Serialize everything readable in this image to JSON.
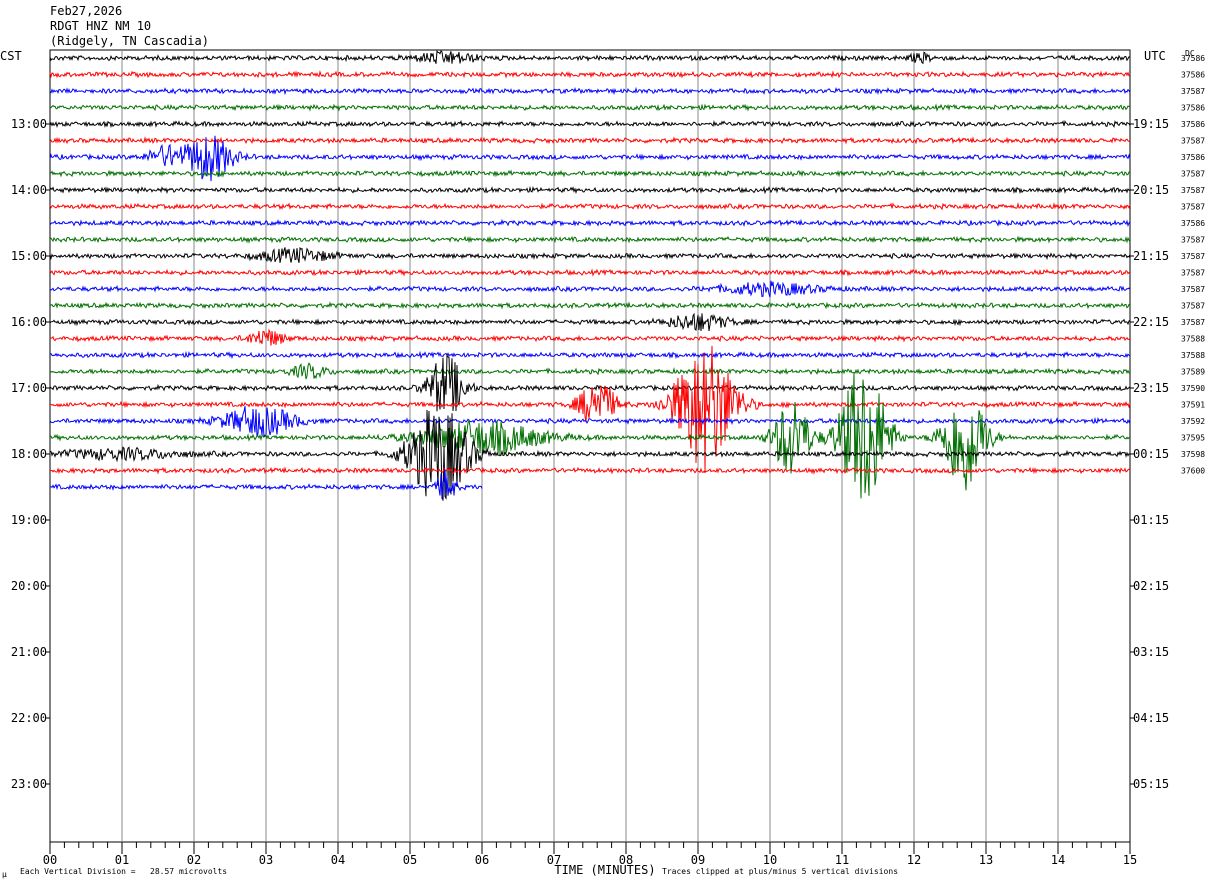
{
  "header": {
    "date": "Feb27,2026",
    "station": "RDGT HNZ NM 10",
    "location": "(Ridgely, TN Cascadia)"
  },
  "left_tz": "CST",
  "right_tz": "UTC",
  "dc_header": "DC",
  "footer": {
    "scale": "Each Vertical Division =   28.57 microvolts",
    "clip": "Traces clipped at plus/minus 5 vertical divisions",
    "logo": "µ"
  },
  "colors": [
    "#000000",
    "#ff0000",
    "#0000ff",
    "#007000"
  ],
  "chart_data": {
    "type": "line",
    "xlabel": "TIME (MINUTES)",
    "x_ticks": [
      "00",
      "01",
      "02",
      "03",
      "04",
      "05",
      "06",
      "07",
      "08",
      "09",
      "10",
      "11",
      "12",
      "13",
      "14",
      "15"
    ],
    "xlim": [
      0,
      15
    ],
    "left_hour_labels": [
      "13:00",
      "14:00",
      "15:00",
      "16:00",
      "17:00",
      "18:00",
      "19:00",
      "20:00",
      "21:00",
      "22:00",
      "23:00"
    ],
    "right_hour_labels": [
      "19:15",
      "20:15",
      "21:15",
      "22:15",
      "23:15",
      "00:15",
      "01:15",
      "02:15",
      "03:15",
      "04:15",
      "05:15"
    ],
    "dc_offsets": [
      "37586",
      "37586",
      "37587",
      "37586",
      "37586",
      "37587",
      "37586",
      "37587",
      "37587",
      "37587",
      "37586",
      "37587",
      "37587",
      "37587",
      "37587",
      "37587",
      "37587",
      "37588",
      "37588",
      "37589",
      "37590",
      "37591",
      "37592",
      "37595",
      "37598",
      "37600"
    ],
    "trace_count": 27,
    "last_trace_end_minute": 6.0,
    "events": [
      {
        "trace": 0,
        "minute": 5.5,
        "amp": 0.35,
        "dur": 1.0
      },
      {
        "trace": 0,
        "minute": 12.1,
        "amp": 0.25,
        "dur": 0.4
      },
      {
        "trace": 6,
        "minute": 1.6,
        "amp": 0.6,
        "dur": 0.6
      },
      {
        "trace": 6,
        "minute": 2.2,
        "amp": 1.4,
        "dur": 0.8
      },
      {
        "trace": 12,
        "minute": 3.4,
        "amp": 0.4,
        "dur": 1.2
      },
      {
        "trace": 14,
        "minute": 10.0,
        "amp": 0.35,
        "dur": 1.6
      },
      {
        "trace": 16,
        "minute": 9.0,
        "amp": 0.5,
        "dur": 1.0
      },
      {
        "trace": 17,
        "minute": 3.0,
        "amp": 0.5,
        "dur": 0.6
      },
      {
        "trace": 19,
        "minute": 3.6,
        "amp": 0.4,
        "dur": 0.6
      },
      {
        "trace": 20,
        "minute": 5.5,
        "amp": 2.0,
        "dur": 0.6
      },
      {
        "trace": 21,
        "minute": 7.6,
        "amp": 1.5,
        "dur": 0.6
      },
      {
        "trace": 21,
        "minute": 9.1,
        "amp": 4.0,
        "dur": 1.0
      },
      {
        "trace": 22,
        "minute": 2.9,
        "amp": 0.9,
        "dur": 1.2
      },
      {
        "trace": 23,
        "minute": 6.0,
        "amp": 1.0,
        "dur": 2.0
      },
      {
        "trace": 23,
        "minute": 10.3,
        "amp": 2.5,
        "dur": 0.6
      },
      {
        "trace": 23,
        "minute": 11.3,
        "amp": 4.5,
        "dur": 0.8
      },
      {
        "trace": 23,
        "minute": 12.7,
        "amp": 3.5,
        "dur": 0.7
      },
      {
        "trace": 24,
        "minute": 5.4,
        "amp": 3.0,
        "dur": 1.0
      },
      {
        "trace": 24,
        "minute": 1.0,
        "amp": 0.3,
        "dur": 2.0
      },
      {
        "trace": 26,
        "minute": 5.5,
        "amp": 1.0,
        "dur": 0.3
      }
    ]
  }
}
